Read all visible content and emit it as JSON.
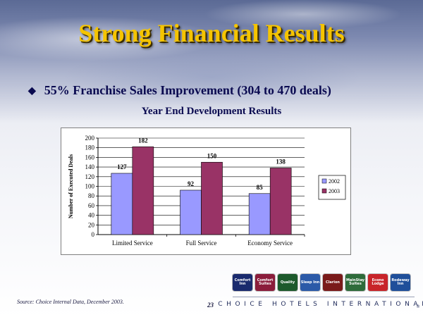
{
  "slide": {
    "title": "Strong Financial Results",
    "bullet_symbol": "◆",
    "bullet": "55% Franchise Sales Improvement (304 to 470 deals)",
    "subtitle": "Year End Development Results",
    "source": "Source: Choice Internal Data, December 2003.",
    "page_number": "23",
    "company": "CHOICE HOTELS INTERNATIONAL",
    "registered_mark": "®"
  },
  "brands": [
    {
      "name": "Comfort Inn",
      "color": "#1a2b6e"
    },
    {
      "name": "Comfort Suites",
      "color": "#8b1d3b"
    },
    {
      "name": "Quality",
      "color": "#1d5a2c"
    },
    {
      "name": "Sleep Inn",
      "color": "#2b5aa8"
    },
    {
      "name": "Clarion",
      "color": "#7a1a1a"
    },
    {
      "name": "MainStay Suites",
      "color": "#2e6b3a"
    },
    {
      "name": "Econo Lodge",
      "color": "#c8242a"
    },
    {
      "name": "Rodeway Inn",
      "color": "#1f4f9a"
    }
  ],
  "chart_data": {
    "type": "bar",
    "categories": [
      "Limited Service",
      "Full Service",
      "Economy Service"
    ],
    "series": [
      {
        "name": "2002",
        "values": [
          127,
          92,
          85
        ],
        "color": "#9999ff"
      },
      {
        "name": "2003",
        "values": [
          182,
          150,
          138
        ],
        "color": "#993366"
      }
    ],
    "ylabel": "Number of Executed Deals",
    "ylim": [
      0,
      200
    ],
    "yticks": [
      0,
      20,
      40,
      60,
      80,
      100,
      120,
      140,
      160,
      180,
      200
    ],
    "data_labels": true,
    "legend": "right",
    "grid": true
  }
}
